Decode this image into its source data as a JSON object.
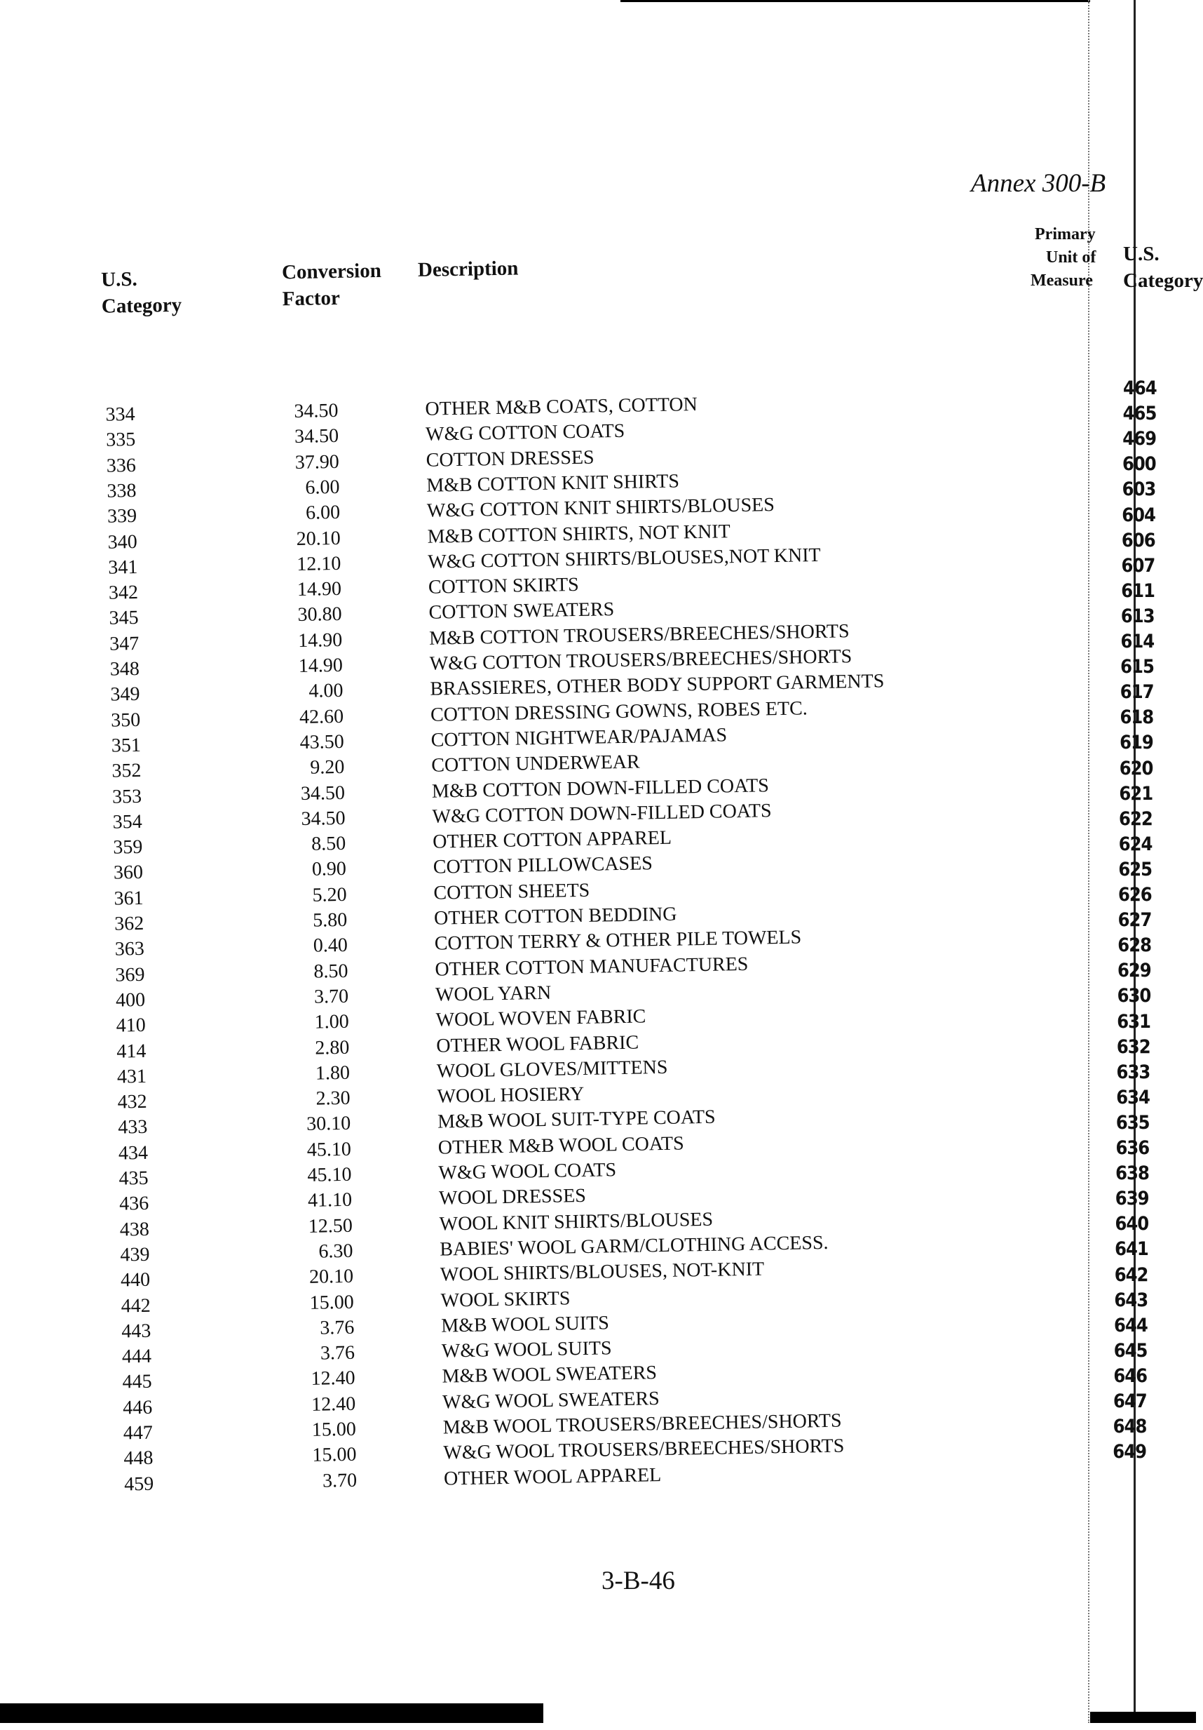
{
  "header": {
    "annex_title": "Annex 300-B",
    "col_category": [
      "U.S.",
      "Category"
    ],
    "col_factor": [
      "Conversion",
      "Factor"
    ],
    "col_description": "Description",
    "col_unit": [
      "Primary",
      "Unit of",
      "Measure"
    ],
    "col_right_category": [
      "U.S.",
      "Category"
    ]
  },
  "rows": [
    {
      "category": "334",
      "factor": "34.50",
      "description": "OTHER M&B COATS, COTTON"
    },
    {
      "category": "335",
      "factor": "34.50",
      "description": "W&G COTTON COATS"
    },
    {
      "category": "336",
      "factor": "37.90",
      "description": "COTTON DRESSES"
    },
    {
      "category": "338",
      "factor": "6.00",
      "description": "M&B COTTON KNIT SHIRTS"
    },
    {
      "category": "339",
      "factor": "6.00",
      "description": "W&G COTTON KNIT SHIRTS/BLOUSES"
    },
    {
      "category": "340",
      "factor": "20.10",
      "description": "M&B COTTON SHIRTS, NOT KNIT"
    },
    {
      "category": "341",
      "factor": "12.10",
      "description": "W&G COTTON SHIRTS/BLOUSES,NOT  KNIT"
    },
    {
      "category": "342",
      "factor": "14.90",
      "description": "COTTON SKIRTS"
    },
    {
      "category": "345",
      "factor": "30.80",
      "description": "COTTON SWEATERS"
    },
    {
      "category": "347",
      "factor": "14.90",
      "description": "M&B COTTON TROUSERS/BREECHES/SHORTS"
    },
    {
      "category": "348",
      "factor": "14.90",
      "description": "W&G COTTON TROUSERS/BREECHES/SHORTS"
    },
    {
      "category": "349",
      "factor": "4.00",
      "description": "BRASSIERES, OTHER BODY SUPPORT GARMENTS"
    },
    {
      "category": "350",
      "factor": "42.60",
      "description": "COTTON DRESSING GOWNS, ROBES ETC."
    },
    {
      "category": "351",
      "factor": "43.50",
      "description": "COTTON NIGHTWEAR/PAJAMAS"
    },
    {
      "category": "352",
      "factor": "9.20",
      "description": "COTTON UNDERWEAR"
    },
    {
      "category": "353",
      "factor": "34.50",
      "description": "M&B COTTON DOWN-FILLED COATS"
    },
    {
      "category": "354",
      "factor": "34.50",
      "description": "W&G COTTON DOWN-FILLED COATS"
    },
    {
      "category": "359",
      "factor": "8.50",
      "description": "OTHER COTTON APPAREL"
    },
    {
      "category": "360",
      "factor": "0.90",
      "description": "COTTON PILLOWCASES"
    },
    {
      "category": "361",
      "factor": "5.20",
      "description": "COTTON SHEETS"
    },
    {
      "category": "362",
      "factor": "5.80",
      "description": "OTHER COTTON BEDDING"
    },
    {
      "category": "363",
      "factor": "0.40",
      "description": "COTTON TERRY & OTHER PILE TOWELS"
    },
    {
      "category": "369",
      "factor": "8.50",
      "description": "OTHER COTTON MANUFACTURES"
    },
    {
      "category": "400",
      "factor": "3.70",
      "description": "WOOL YARN"
    },
    {
      "category": "410",
      "factor": "1.00",
      "description": "WOOL WOVEN FABRIC"
    },
    {
      "category": "414",
      "factor": "2.80",
      "description": "OTHER WOOL FABRIC"
    },
    {
      "category": "431",
      "factor": "1.80",
      "description": "WOOL GLOVES/MITTENS"
    },
    {
      "category": "432",
      "factor": "2.30",
      "description": "WOOL HOSIERY"
    },
    {
      "category": "433",
      "factor": "30.10",
      "description": "M&B WOOL SUIT-TYPE COATS"
    },
    {
      "category": "434",
      "factor": "45.10",
      "description": "OTHER M&B WOOL COATS"
    },
    {
      "category": "435",
      "factor": "45.10",
      "description": "W&G WOOL COATS"
    },
    {
      "category": "436",
      "factor": "41.10",
      "description": "WOOL DRESSES"
    },
    {
      "category": "438",
      "factor": "12.50",
      "description": "WOOL KNIT SHIRTS/BLOUSES"
    },
    {
      "category": "439",
      "factor": "6.30",
      "description": "BABIES' WOOL GARM/CLOTHING ACCESS."
    },
    {
      "category": "440",
      "factor": "20.10",
      "description": "WOOL SHIRTS/BLOUSES, NOT-KNIT"
    },
    {
      "category": "442",
      "factor": "15.00",
      "description": "WOOL SKIRTS"
    },
    {
      "category": "443",
      "factor": "3.76",
      "description": "M&B WOOL SUITS"
    },
    {
      "category": "444",
      "factor": "3.76",
      "description": "W&G WOOL SUITS"
    },
    {
      "category": "445",
      "factor": "12.40",
      "description": "M&B WOOL SWEATERS"
    },
    {
      "category": "446",
      "factor": "12.40",
      "description": "W&G WOOL SWEATERS"
    },
    {
      "category": "447",
      "factor": "15.00",
      "description": "M&B WOOL TROUSERS/BREECHES/SHORTS"
    },
    {
      "category": "448",
      "factor": "15.00",
      "description": "W&G WOOL TROUSERS/BREECHES/SHORTS"
    },
    {
      "category": "459",
      "factor": "3.70",
      "description": "OTHER WOOL APPAREL"
    }
  ],
  "right_categories": [
    "464",
    "465",
    "469",
    "600",
    "603",
    "604",
    "606",
    "607",
    "611",
    "613",
    "614",
    "615",
    "617",
    "618",
    "619",
    "620",
    "621",
    "622",
    "624",
    "625",
    "626",
    "627",
    "628",
    "629",
    "630",
    "631",
    "632",
    "633",
    "634",
    "635",
    "636",
    "638",
    "639",
    "640",
    "641",
    "642",
    "643",
    "644",
    "645",
    "646",
    "647",
    "648",
    "649"
  ],
  "footer": {
    "page_number": "3-B-46"
  }
}
